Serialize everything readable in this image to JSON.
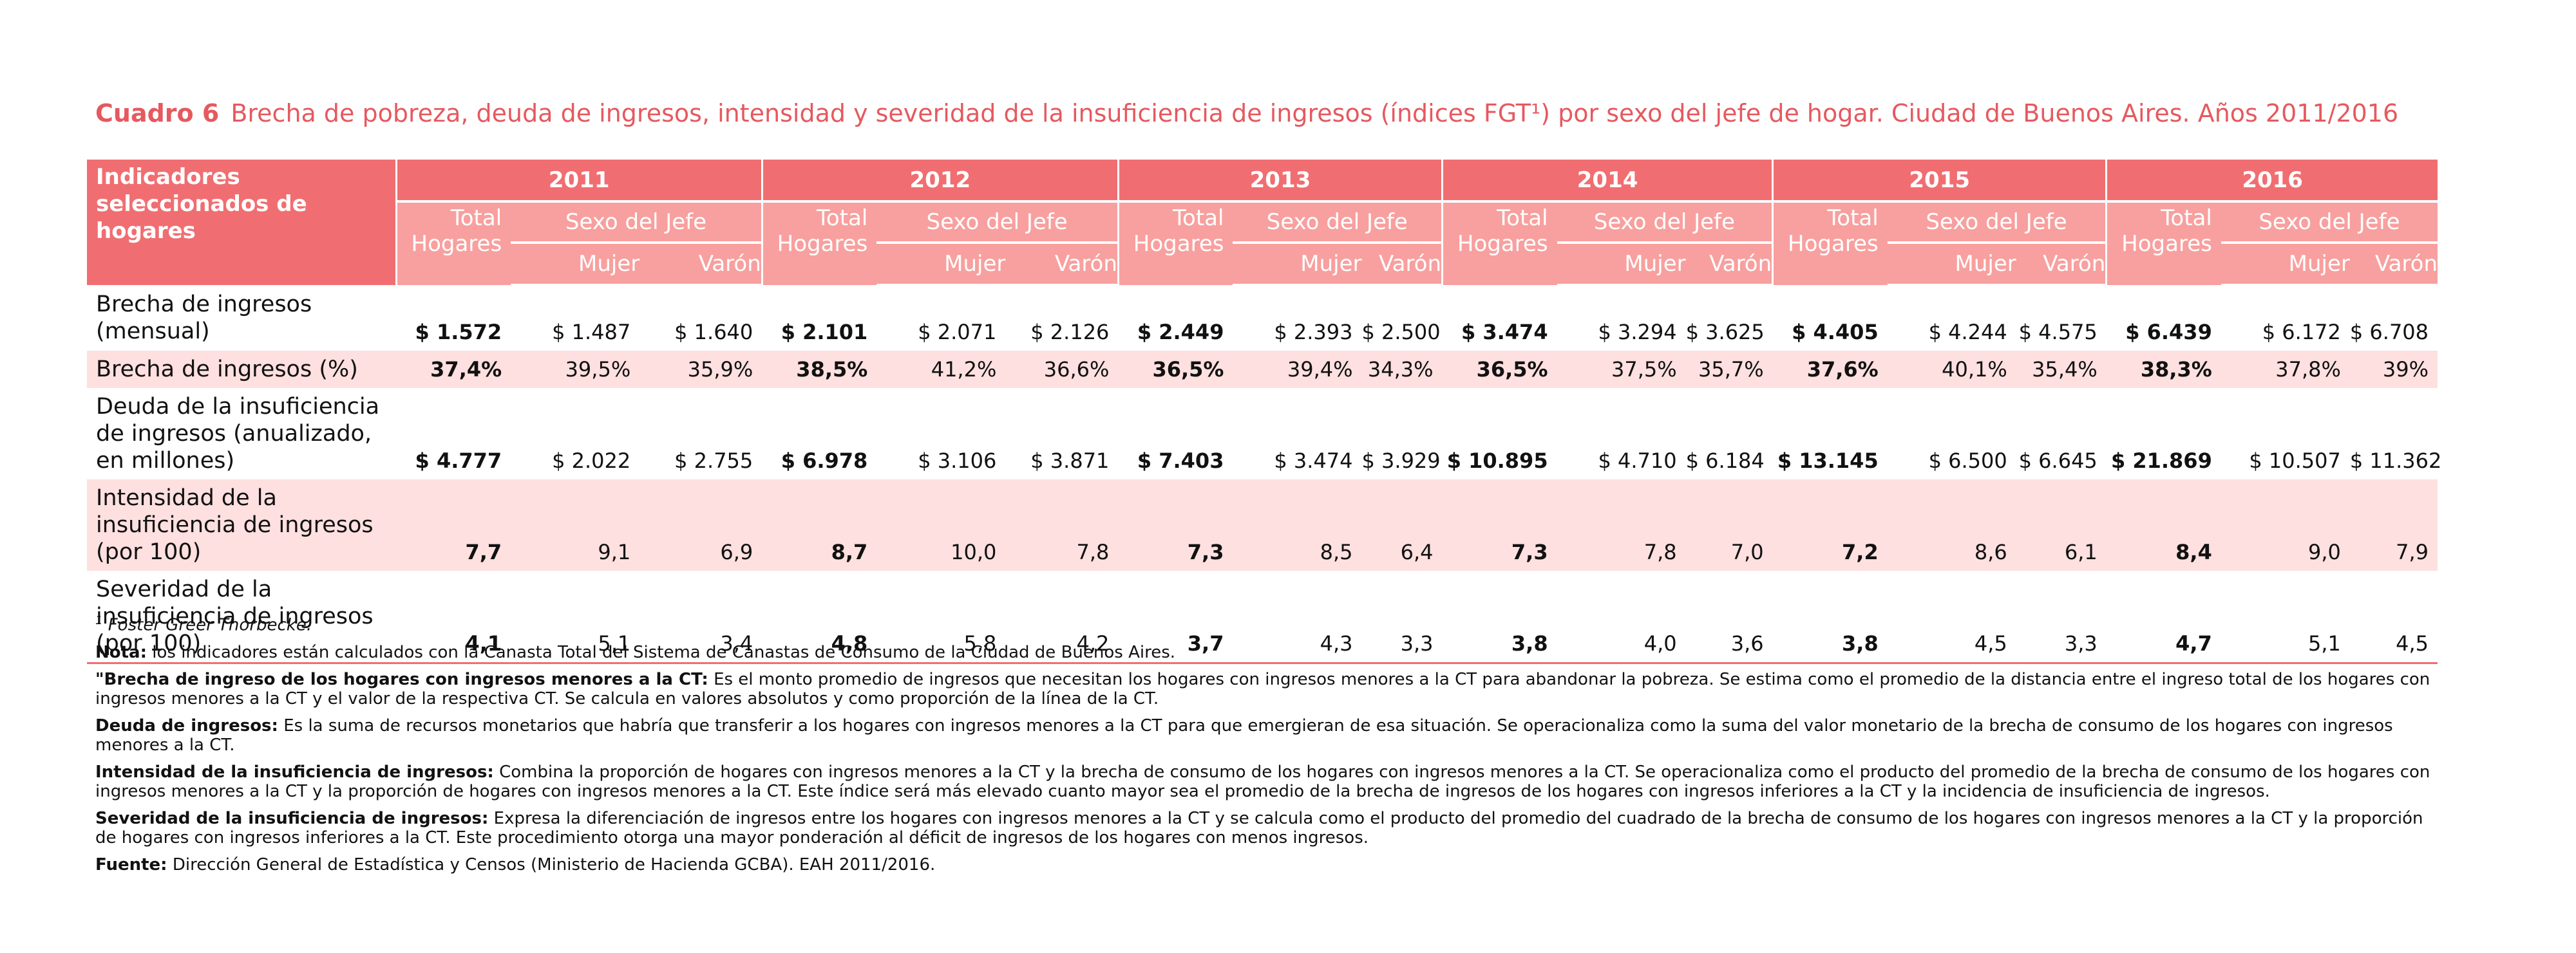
{
  "title": {
    "number": "Cuadro 6",
    "text": "Brecha de pobreza, deuda de ingresos, intensidad y severidad de la insuficiencia de ingresos (índices FGT¹) por sexo del jefe de hogar. Ciudad de Buenos Aires. Años 2011/2016"
  },
  "table": {
    "indicator_header": "Indicadores seleccionados de hogares",
    "total_label": "Total Hogares",
    "sexo_label": "Sexo del Jefe",
    "mujer_label": "Mujer",
    "varon_label": "Varón",
    "years": [
      "2011",
      "2012",
      "2013",
      "2014",
      "2015",
      "2016"
    ],
    "rows": [
      {
        "label": "Brecha de ingresos (mensual)",
        "cells": [
          [
            "$ 1.572",
            "$ 1.487",
            "$ 1.640"
          ],
          [
            "$ 2.101",
            "$ 2.071",
            "$ 2.126"
          ],
          [
            "$ 2.449",
            "$ 2.393",
            "$ 2.500"
          ],
          [
            "$ 3.474",
            "$ 3.294",
            "$ 3.625"
          ],
          [
            "$ 4.405",
            "$ 4.244",
            "$ 4.575"
          ],
          [
            "$ 6.439",
            "$ 6.172",
            "$ 6.708"
          ]
        ]
      },
      {
        "label": "Brecha de ingresos (%)",
        "cells": [
          [
            "37,4%",
            "39,5%",
            "35,9%"
          ],
          [
            "38,5%",
            "41,2%",
            "36,6%"
          ],
          [
            "36,5%",
            "39,4%",
            "34,3%"
          ],
          [
            "36,5%",
            "37,5%",
            "35,7%"
          ],
          [
            "37,6%",
            "40,1%",
            "35,4%"
          ],
          [
            "38,3%",
            "37,8%",
            "39%"
          ]
        ]
      },
      {
        "label": "Deuda de la insuficiencia de ingresos (anualizado, en millones)",
        "cells": [
          [
            "$ 4.777",
            "$ 2.022",
            "$ 2.755"
          ],
          [
            "$ 6.978",
            "$ 3.106",
            "$ 3.871"
          ],
          [
            "$ 7.403",
            "$ 3.474",
            "$ 3.929"
          ],
          [
            "$ 10.895",
            "$ 4.710",
            "$ 6.184"
          ],
          [
            "$ 13.145",
            "$ 6.500",
            "$ 6.645"
          ],
          [
            "$ 21.869",
            "$ 10.507",
            "$ 11.362"
          ]
        ]
      },
      {
        "label": "Intensidad de la insuficiencia de ingresos (por 100)",
        "cells": [
          [
            "7,7",
            "9,1",
            "6,9"
          ],
          [
            "8,7",
            "10,0",
            "7,8"
          ],
          [
            "7,3",
            "8,5",
            "6,4"
          ],
          [
            "7,3",
            "7,8",
            "7,0"
          ],
          [
            "7,2",
            "8,6",
            "6,1"
          ],
          [
            "8,4",
            "9,0",
            "7,9"
          ]
        ]
      },
      {
        "label": "Severidad de la insuficiencia de ingresos (por 100)",
        "cells": [
          [
            "4,1",
            "5,1",
            "3,4"
          ],
          [
            "4,8",
            "5,8",
            "4,2"
          ],
          [
            "3,7",
            "4,3",
            "3,3"
          ],
          [
            "3,8",
            "4,0",
            "3,6"
          ],
          [
            "3,8",
            "4,5",
            "3,3"
          ],
          [
            "4,7",
            "5,1",
            "4,5"
          ]
        ]
      }
    ]
  },
  "notes": {
    "footnote_mark": "1",
    "footnote_text": "Foster Greer Thorbecke.",
    "nota_label": "Nota:",
    "nota_text": "los indicadores están calculados con la Canasta Total del Sistema de Canastas de Consumo de la Ciudad de Buenos Aires.",
    "brecha_label": "\"Brecha de ingreso de los hogares con ingresos menores a la CT:",
    "brecha_text": "Es el monto promedio de ingresos que necesitan los hogares con ingresos menores a la CT para abandonar la pobreza. Se estima como el promedio de la distancia entre el ingreso total de los hogares con ingresos menores a la CT y el valor de la respectiva CT. Se calcula en valores absolutos y como proporción de la línea de la CT.",
    "deuda_label": "Deuda de ingresos:",
    "deuda_text": "Es la suma de recursos monetarios que habría que transferir a los hogares con ingresos menores a la CT para que emergieran de esa situación. Se operacionaliza como la suma del valor monetario de la brecha de consumo de los hogares con ingresos menores a la CT.",
    "intensidad_label": "Intensidad de la insuficiencia de ingresos:",
    "intensidad_text": "Combina la proporción de hogares con ingresos menores a la CT y la brecha de consumo de los hogares con ingresos menores a la CT. Se operacionaliza como el producto del promedio de la brecha de consumo de los hogares con ingresos menores a la CT y la proporción de hogares con ingresos menores a la CT. Este índice será más elevado cuanto mayor sea el promedio de la brecha de ingresos de los hogares con ingresos inferiores a la CT y la incidencia de insuficiencia de ingresos.",
    "severidad_label": "Severidad de la insuficiencia de ingresos:",
    "severidad_text": "Expresa la diferenciación de ingresos entre los hogares con ingresos menores a la CT y se calcula como el producto del promedio del cuadrado de la brecha de consumo de los hogares con ingresos menores a la CT y la proporción de hogares con ingresos inferiores a la CT. Este procedimiento otorga una mayor ponderación al déficit de ingresos de los hogares con menos ingresos.",
    "fuente_label": "Fuente:",
    "fuente_text": "Dirección General de Estadística y Censos (Ministerio de Hacienda GCBA). EAH 2011/2016."
  }
}
